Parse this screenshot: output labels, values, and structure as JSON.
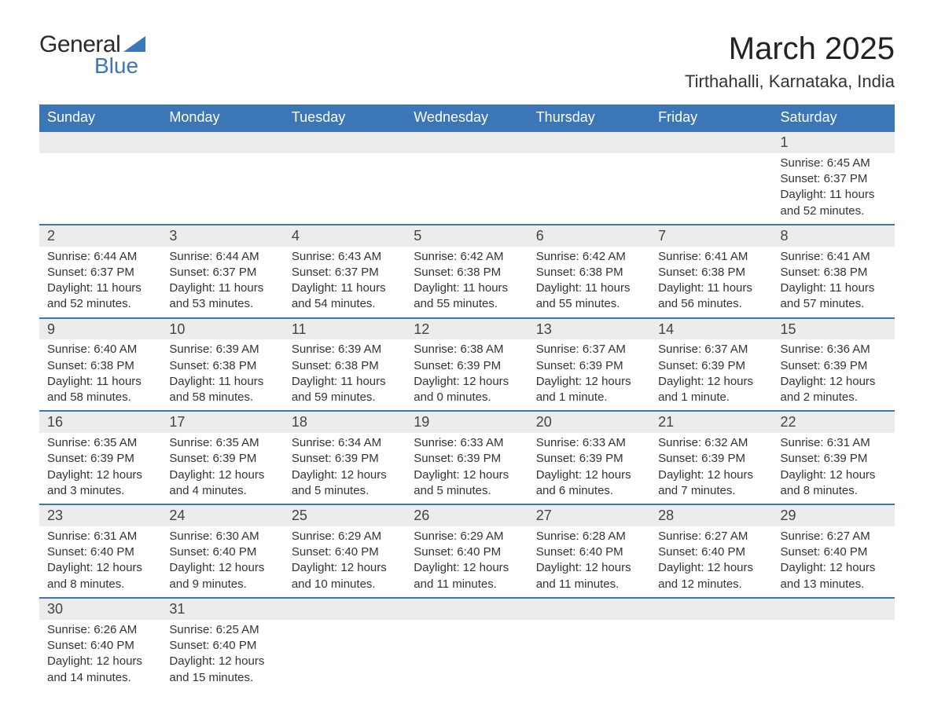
{
  "logo": {
    "word1": "General",
    "word2": "Blue",
    "triangle_color": "#3b76b7"
  },
  "header": {
    "title": "March 2025",
    "subtitle": "Tirthahalli, Karnataka, India"
  },
  "day_labels": [
    "Sunday",
    "Monday",
    "Tuesday",
    "Wednesday",
    "Thursday",
    "Friday",
    "Saturday"
  ],
  "colors": {
    "header_bg": "#3b76b7",
    "header_text": "#ffffff",
    "daynum_bg": "#ececec",
    "row_border": "#3b76b7",
    "body_text": "#333333",
    "page_bg": "#ffffff"
  },
  "fontsizes": {
    "title": 40,
    "subtitle": 22,
    "day_header": 18,
    "daynum": 18,
    "cell": 15
  },
  "weeks": [
    [
      {
        "n": "",
        "sr": "",
        "ss": "",
        "dl": ""
      },
      {
        "n": "",
        "sr": "",
        "ss": "",
        "dl": ""
      },
      {
        "n": "",
        "sr": "",
        "ss": "",
        "dl": ""
      },
      {
        "n": "",
        "sr": "",
        "ss": "",
        "dl": ""
      },
      {
        "n": "",
        "sr": "",
        "ss": "",
        "dl": ""
      },
      {
        "n": "",
        "sr": "",
        "ss": "",
        "dl": ""
      },
      {
        "n": "1",
        "sr": "Sunrise: 6:45 AM",
        "ss": "Sunset: 6:37 PM",
        "dl": "Daylight: 11 hours and 52 minutes."
      }
    ],
    [
      {
        "n": "2",
        "sr": "Sunrise: 6:44 AM",
        "ss": "Sunset: 6:37 PM",
        "dl": "Daylight: 11 hours and 52 minutes."
      },
      {
        "n": "3",
        "sr": "Sunrise: 6:44 AM",
        "ss": "Sunset: 6:37 PM",
        "dl": "Daylight: 11 hours and 53 minutes."
      },
      {
        "n": "4",
        "sr": "Sunrise: 6:43 AM",
        "ss": "Sunset: 6:37 PM",
        "dl": "Daylight: 11 hours and 54 minutes."
      },
      {
        "n": "5",
        "sr": "Sunrise: 6:42 AM",
        "ss": "Sunset: 6:38 PM",
        "dl": "Daylight: 11 hours and 55 minutes."
      },
      {
        "n": "6",
        "sr": "Sunrise: 6:42 AM",
        "ss": "Sunset: 6:38 PM",
        "dl": "Daylight: 11 hours and 55 minutes."
      },
      {
        "n": "7",
        "sr": "Sunrise: 6:41 AM",
        "ss": "Sunset: 6:38 PM",
        "dl": "Daylight: 11 hours and 56 minutes."
      },
      {
        "n": "8",
        "sr": "Sunrise: 6:41 AM",
        "ss": "Sunset: 6:38 PM",
        "dl": "Daylight: 11 hours and 57 minutes."
      }
    ],
    [
      {
        "n": "9",
        "sr": "Sunrise: 6:40 AM",
        "ss": "Sunset: 6:38 PM",
        "dl": "Daylight: 11 hours and 58 minutes."
      },
      {
        "n": "10",
        "sr": "Sunrise: 6:39 AM",
        "ss": "Sunset: 6:38 PM",
        "dl": "Daylight: 11 hours and 58 minutes."
      },
      {
        "n": "11",
        "sr": "Sunrise: 6:39 AM",
        "ss": "Sunset: 6:38 PM",
        "dl": "Daylight: 11 hours and 59 minutes."
      },
      {
        "n": "12",
        "sr": "Sunrise: 6:38 AM",
        "ss": "Sunset: 6:39 PM",
        "dl": "Daylight: 12 hours and 0 minutes."
      },
      {
        "n": "13",
        "sr": "Sunrise: 6:37 AM",
        "ss": "Sunset: 6:39 PM",
        "dl": "Daylight: 12 hours and 1 minute."
      },
      {
        "n": "14",
        "sr": "Sunrise: 6:37 AM",
        "ss": "Sunset: 6:39 PM",
        "dl": "Daylight: 12 hours and 1 minute."
      },
      {
        "n": "15",
        "sr": "Sunrise: 6:36 AM",
        "ss": "Sunset: 6:39 PM",
        "dl": "Daylight: 12 hours and 2 minutes."
      }
    ],
    [
      {
        "n": "16",
        "sr": "Sunrise: 6:35 AM",
        "ss": "Sunset: 6:39 PM",
        "dl": "Daylight: 12 hours and 3 minutes."
      },
      {
        "n": "17",
        "sr": "Sunrise: 6:35 AM",
        "ss": "Sunset: 6:39 PM",
        "dl": "Daylight: 12 hours and 4 minutes."
      },
      {
        "n": "18",
        "sr": "Sunrise: 6:34 AM",
        "ss": "Sunset: 6:39 PM",
        "dl": "Daylight: 12 hours and 5 minutes."
      },
      {
        "n": "19",
        "sr": "Sunrise: 6:33 AM",
        "ss": "Sunset: 6:39 PM",
        "dl": "Daylight: 12 hours and 5 minutes."
      },
      {
        "n": "20",
        "sr": "Sunrise: 6:33 AM",
        "ss": "Sunset: 6:39 PM",
        "dl": "Daylight: 12 hours and 6 minutes."
      },
      {
        "n": "21",
        "sr": "Sunrise: 6:32 AM",
        "ss": "Sunset: 6:39 PM",
        "dl": "Daylight: 12 hours and 7 minutes."
      },
      {
        "n": "22",
        "sr": "Sunrise: 6:31 AM",
        "ss": "Sunset: 6:39 PM",
        "dl": "Daylight: 12 hours and 8 minutes."
      }
    ],
    [
      {
        "n": "23",
        "sr": "Sunrise: 6:31 AM",
        "ss": "Sunset: 6:40 PM",
        "dl": "Daylight: 12 hours and 8 minutes."
      },
      {
        "n": "24",
        "sr": "Sunrise: 6:30 AM",
        "ss": "Sunset: 6:40 PM",
        "dl": "Daylight: 12 hours and 9 minutes."
      },
      {
        "n": "25",
        "sr": "Sunrise: 6:29 AM",
        "ss": "Sunset: 6:40 PM",
        "dl": "Daylight: 12 hours and 10 minutes."
      },
      {
        "n": "26",
        "sr": "Sunrise: 6:29 AM",
        "ss": "Sunset: 6:40 PM",
        "dl": "Daylight: 12 hours and 11 minutes."
      },
      {
        "n": "27",
        "sr": "Sunrise: 6:28 AM",
        "ss": "Sunset: 6:40 PM",
        "dl": "Daylight: 12 hours and 11 minutes."
      },
      {
        "n": "28",
        "sr": "Sunrise: 6:27 AM",
        "ss": "Sunset: 6:40 PM",
        "dl": "Daylight: 12 hours and 12 minutes."
      },
      {
        "n": "29",
        "sr": "Sunrise: 6:27 AM",
        "ss": "Sunset: 6:40 PM",
        "dl": "Daylight: 12 hours and 13 minutes."
      }
    ],
    [
      {
        "n": "30",
        "sr": "Sunrise: 6:26 AM",
        "ss": "Sunset: 6:40 PM",
        "dl": "Daylight: 12 hours and 14 minutes."
      },
      {
        "n": "31",
        "sr": "Sunrise: 6:25 AM",
        "ss": "Sunset: 6:40 PM",
        "dl": "Daylight: 12 hours and 15 minutes."
      },
      {
        "n": "",
        "sr": "",
        "ss": "",
        "dl": ""
      },
      {
        "n": "",
        "sr": "",
        "ss": "",
        "dl": ""
      },
      {
        "n": "",
        "sr": "",
        "ss": "",
        "dl": ""
      },
      {
        "n": "",
        "sr": "",
        "ss": "",
        "dl": ""
      },
      {
        "n": "",
        "sr": "",
        "ss": "",
        "dl": ""
      }
    ]
  ]
}
